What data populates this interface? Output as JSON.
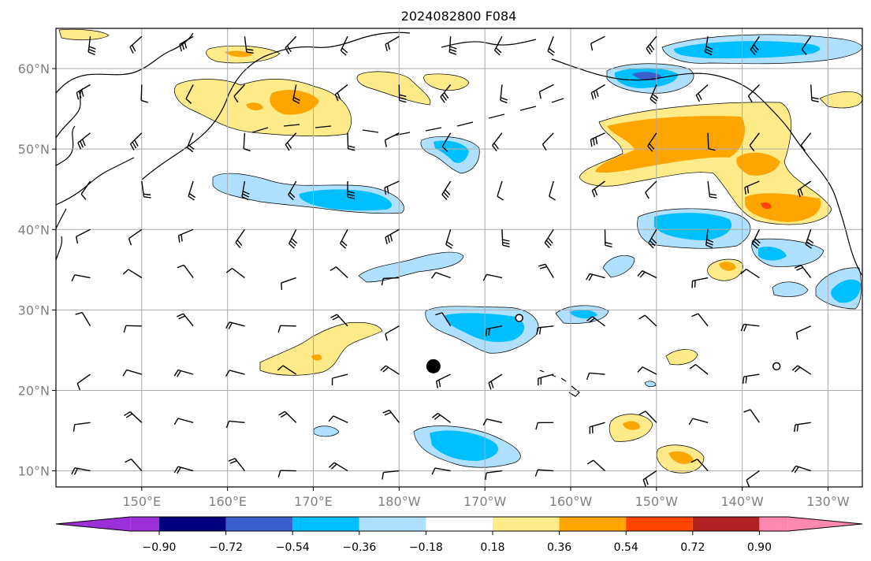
{
  "title": "2024082800 F084",
  "map": {
    "lon_range": [
      140,
      234
    ],
    "lat_range": [
      8,
      65
    ],
    "lon_ticks": [
      {
        "value": 150,
        "label": "150°E"
      },
      {
        "value": 160,
        "label": "160°E"
      },
      {
        "value": 170,
        "label": "170°E"
      },
      {
        "value": 180,
        "label": "180°W"
      },
      {
        "value": 190,
        "label": "170°W"
      },
      {
        "value": 200,
        "label": "160°W"
      },
      {
        "value": 210,
        "label": "150°W"
      },
      {
        "value": 220,
        "label": "140°W"
      },
      {
        "value": 230,
        "label": "130°W"
      }
    ],
    "lat_ticks": [
      {
        "value": 10,
        "label": "10°N"
      },
      {
        "value": 20,
        "label": "20°N"
      },
      {
        "value": 30,
        "label": "30°N"
      },
      {
        "value": 40,
        "label": "40°N"
      },
      {
        "value": 50,
        "label": "50°N"
      },
      {
        "value": 60,
        "label": "60°N"
      }
    ],
    "grid": true
  },
  "colorbar": {
    "levels": [
      -0.9,
      -0.72,
      -0.54,
      -0.36,
      -0.18,
      0.18,
      0.36,
      0.54,
      0.72,
      0.9
    ],
    "tick_labels": [
      "−0.90",
      "−0.72",
      "−0.54",
      "−0.36",
      "−0.18",
      "0.18",
      "0.36",
      "0.54",
      "0.72",
      "0.90"
    ],
    "colors": [
      "#9b30d9",
      "#00007f",
      "#3a5fcd",
      "#00bfff",
      "#b0e0ff",
      "#ffffff",
      "#ffeb8a",
      "#ffa500",
      "#ff4500",
      "#b22222",
      "#ff88b0"
    ],
    "extend": "both"
  },
  "colors": {
    "neg_light": "#b0e0ff",
    "neg_mid": "#00bfff",
    "neg_dark": "#3a5fcd",
    "pos_light": "#ffeb8a",
    "pos_mid": "#ffa500",
    "pos_dark": "#ff4500",
    "coast": "#000000",
    "grid": "#aaaaaa"
  },
  "markers": [
    {
      "type": "filled-circle",
      "lon": 184,
      "lat": 23
    },
    {
      "type": "open-circle",
      "lon": 194,
      "lat": 29
    },
    {
      "type": "open-circle",
      "lon": 224,
      "lat": 23
    }
  ]
}
